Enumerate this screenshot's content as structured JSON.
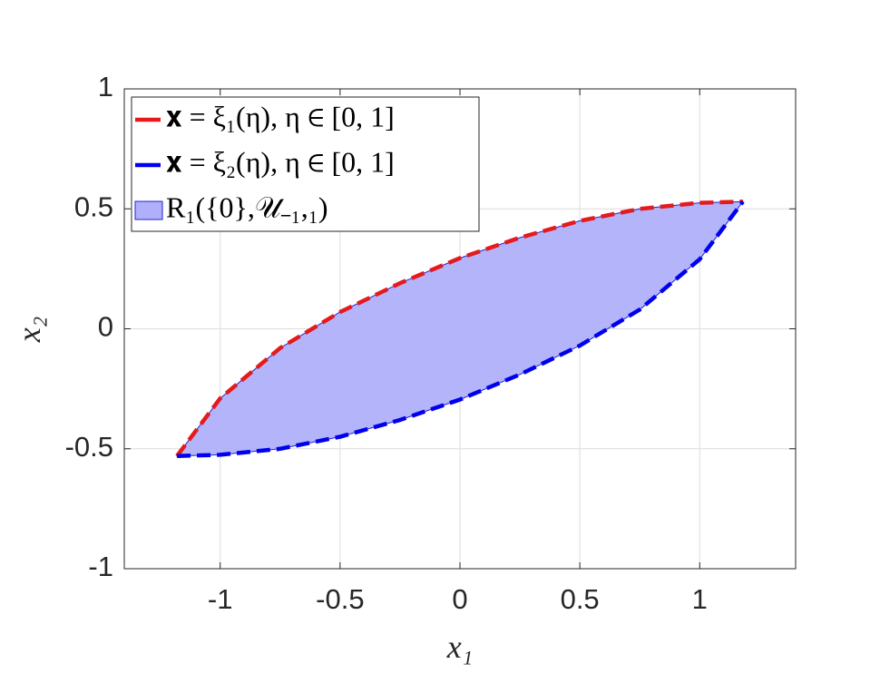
{
  "chart_data": {
    "type": "line",
    "xlabel": "x₁",
    "ylabel": "x₂",
    "xlim": [
      -1.4,
      1.4
    ],
    "ylim": [
      -1,
      1
    ],
    "xticks": [
      -1,
      -0.5,
      0,
      0.5,
      1
    ],
    "yticks": [
      -1,
      -0.5,
      0,
      0.5,
      1
    ],
    "grid": true,
    "series": [
      {
        "name": "𝐱 = ξ₁(η),  η ∈ [0, 1]",
        "color": "#e41a1c",
        "style": "dashed",
        "x": [
          -1.18,
          -1,
          -0.75,
          -0.5,
          -0.25,
          0,
          0.25,
          0.5,
          0.75,
          1,
          1.18
        ],
        "values": [
          -0.53,
          -0.29,
          -0.08,
          0.07,
          0.19,
          0.295,
          0.38,
          0.45,
          0.5,
          0.525,
          0.53
        ]
      },
      {
        "name": "𝐱 = ξ₂(η),  η ∈ [0, 1]",
        "color": "#0000ee",
        "style": "dashed",
        "x": [
          -1.18,
          -1,
          -0.75,
          -0.5,
          -0.25,
          0,
          0.25,
          0.5,
          0.75,
          1,
          1.18
        ],
        "values": [
          -0.53,
          -0.525,
          -0.5,
          -0.45,
          -0.38,
          -0.295,
          -0.19,
          -0.07,
          0.08,
          0.29,
          0.53
        ]
      },
      {
        "name": "R₁({0},𝒰₋₁,₁)",
        "color": "#b0b0fa",
        "style": "fill",
        "x": [
          -1.18,
          -1,
          -0.75,
          -0.5,
          -0.25,
          0,
          0.25,
          0.5,
          0.75,
          1,
          1.18,
          1,
          0.75,
          0.5,
          0.25,
          0,
          -0.25,
          -0.5,
          -0.75,
          -1
        ],
        "values": [
          -0.53,
          -0.29,
          -0.08,
          0.07,
          0.19,
          0.295,
          0.38,
          0.45,
          0.5,
          0.525,
          0.53,
          0.29,
          0.08,
          -0.07,
          -0.19,
          -0.295,
          -0.38,
          -0.45,
          -0.5,
          -0.525
        ]
      }
    ],
    "legend": "upper-left"
  }
}
